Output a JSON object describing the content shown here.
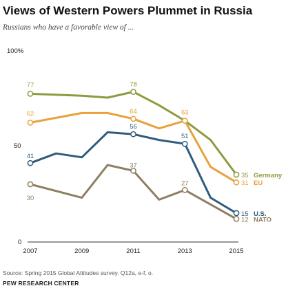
{
  "title": "Views of Western Powers Plummet in Russia",
  "subtitle": "Russians who have a favorable view of ...",
  "source": "Source: Spring 2015 Global Attitudes survey. Q12a, e-f, o.",
  "credit": "PEW RESEARCH CENTER",
  "chart_data": {
    "type": "line",
    "title": "Views of Western Powers Plummet in Russia",
    "subtitle": "Russians who have a favorable view of ...",
    "xlabel": "",
    "ylabel": "",
    "xlim": [
      2007,
      2015
    ],
    "ylim": [
      0,
      100
    ],
    "x_ticks": [
      "2007",
      "2009",
      "2011",
      "2013",
      "2015"
    ],
    "y_ticks": [
      "0",
      "50",
      "100%"
    ],
    "grid": false,
    "legend": "inline labels at line ends",
    "series": [
      {
        "name": "Germany",
        "color": "#8f9a3f",
        "points": [
          [
            2007,
            77
          ],
          [
            2009,
            76
          ],
          [
            2010,
            75
          ],
          [
            2011,
            78
          ],
          [
            2012,
            71
          ],
          [
            2013,
            63
          ],
          [
            2014,
            53
          ],
          [
            2015,
            35
          ]
        ],
        "labeled": [
          {
            "x": 2007,
            "y": 77,
            "text": "77"
          },
          {
            "x": 2011,
            "y": 78,
            "text": "78"
          },
          {
            "x": 2015,
            "y": 35,
            "text": "35"
          }
        ]
      },
      {
        "name": "EU",
        "color": "#e8a13b",
        "points": [
          [
            2007,
            62
          ],
          [
            2009,
            67
          ],
          [
            2010,
            67
          ],
          [
            2011,
            64
          ],
          [
            2012,
            59
          ],
          [
            2013,
            63
          ],
          [
            2014,
            39
          ],
          [
            2015,
            31
          ]
        ],
        "labeled": [
          {
            "x": 2007,
            "y": 62,
            "text": "62"
          },
          {
            "x": 2011,
            "y": 64,
            "text": "64"
          },
          {
            "x": 2013,
            "y": 63,
            "text": "63"
          },
          {
            "x": 2015,
            "y": 31,
            "text": "31"
          }
        ]
      },
      {
        "name": "U.S.",
        "color": "#2f5b7c",
        "points": [
          [
            2007,
            41
          ],
          [
            2008,
            46
          ],
          [
            2009,
            44
          ],
          [
            2010,
            57
          ],
          [
            2011,
            56
          ],
          [
            2012,
            53
          ],
          [
            2013,
            51
          ],
          [
            2014,
            23
          ],
          [
            2015,
            15
          ]
        ],
        "labeled": [
          {
            "x": 2007,
            "y": 41,
            "text": "41"
          },
          {
            "x": 2011,
            "y": 56,
            "text": "56"
          },
          {
            "x": 2013,
            "y": 51,
            "text": "51"
          },
          {
            "x": 2015,
            "y": 15,
            "text": "15"
          }
        ]
      },
      {
        "name": "NATO",
        "color": "#8e7f61",
        "points": [
          [
            2007,
            30
          ],
          [
            2009,
            23
          ],
          [
            2010,
            40
          ],
          [
            2011,
            37
          ],
          [
            2012,
            22
          ],
          [
            2013,
            27
          ],
          [
            2015,
            12
          ]
        ],
        "labeled": [
          {
            "x": 2007,
            "y": 30,
            "text": "30"
          },
          {
            "x": 2011,
            "y": 37,
            "text": "37"
          },
          {
            "x": 2013,
            "y": 27,
            "text": "27"
          },
          {
            "x": 2015,
            "y": 12,
            "text": "12"
          }
        ]
      }
    ]
  }
}
